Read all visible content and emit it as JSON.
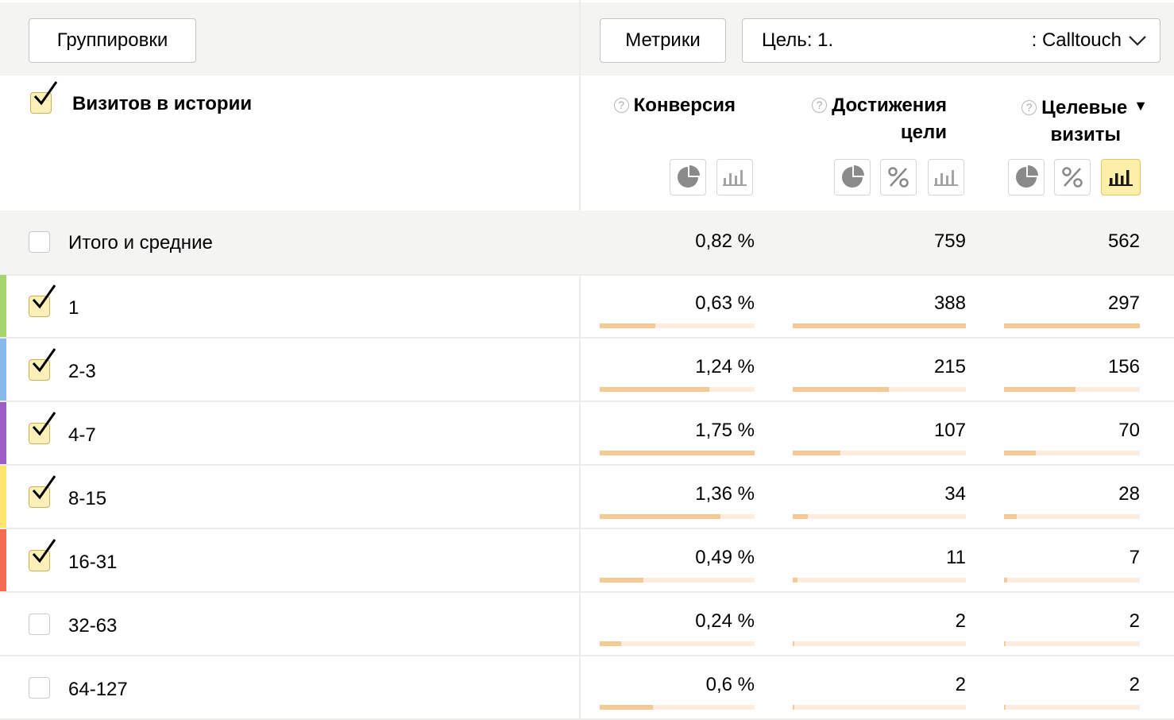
{
  "toolbar": {
    "groupings_label": "Группировки",
    "metrics_label": "Метрики",
    "goal_prefix": "Цель: 1.",
    "goal_name": ": Calltouch"
  },
  "header": {
    "dimension_title": "Визитов в истории",
    "metrics": [
      {
        "line1": "Конверсия",
        "line2": ""
      },
      {
        "line1": "Достижения",
        "line2": "цели"
      },
      {
        "line1": "Целевые",
        "line2": "визиты"
      }
    ],
    "help_glyph": "?",
    "sort_glyph": "▼"
  },
  "totals": {
    "label": "Итого и средние",
    "conversion": "0,82 %",
    "goal_reaches": "759",
    "target_visits": "562"
  },
  "rows": [
    {
      "label": "1",
      "checked": true,
      "color": "#a4d46b",
      "conversion": "0,63 %",
      "goal_reaches": "388",
      "target_visits": "297",
      "conv_share": 0.36,
      "reach_share": 1.0,
      "visits_share": 1.0
    },
    {
      "label": "2-3",
      "checked": true,
      "color": "#89b9ea",
      "conversion": "1,24 %",
      "goal_reaches": "215",
      "target_visits": "156",
      "conv_share": 0.708,
      "reach_share": 0.554,
      "visits_share": 0.525
    },
    {
      "label": "4-7",
      "checked": true,
      "color": "#9d5fc4",
      "conversion": "1,75 %",
      "goal_reaches": "107",
      "target_visits": "70",
      "conv_share": 1.0,
      "reach_share": 0.276,
      "visits_share": 0.236
    },
    {
      "label": "8-15",
      "checked": true,
      "color": "#fde46a",
      "conversion": "1,36 %",
      "goal_reaches": "34",
      "target_visits": "28",
      "conv_share": 0.777,
      "reach_share": 0.088,
      "visits_share": 0.094
    },
    {
      "label": "16-31",
      "checked": true,
      "color": "#f26a4f",
      "conversion": "0,49 %",
      "goal_reaches": "11",
      "target_visits": "7",
      "conv_share": 0.28,
      "reach_share": 0.028,
      "visits_share": 0.024
    },
    {
      "label": "32-63",
      "checked": false,
      "color": "",
      "conversion": "0,24 %",
      "goal_reaches": "2",
      "target_visits": "2",
      "conv_share": 0.137,
      "reach_share": 0.005,
      "visits_share": 0.007
    },
    {
      "label": "64-127",
      "checked": false,
      "color": "",
      "conversion": "0,6 %",
      "goal_reaches": "2",
      "target_visits": "2",
      "conv_share": 0.343,
      "reach_share": 0.005,
      "visits_share": 0.007
    }
  ],
  "icons": {
    "view_pie": "pie-chart-icon",
    "view_percent": "percent-icon",
    "view_bars": "bar-chart-icon",
    "goal_chevron": "chevron-down-icon"
  },
  "colors": {
    "active_view": "#fdeeaa",
    "bar_fill": "#f5c996",
    "bar_track": "#fdede0",
    "checkbox_checked": "#fcefb8"
  }
}
